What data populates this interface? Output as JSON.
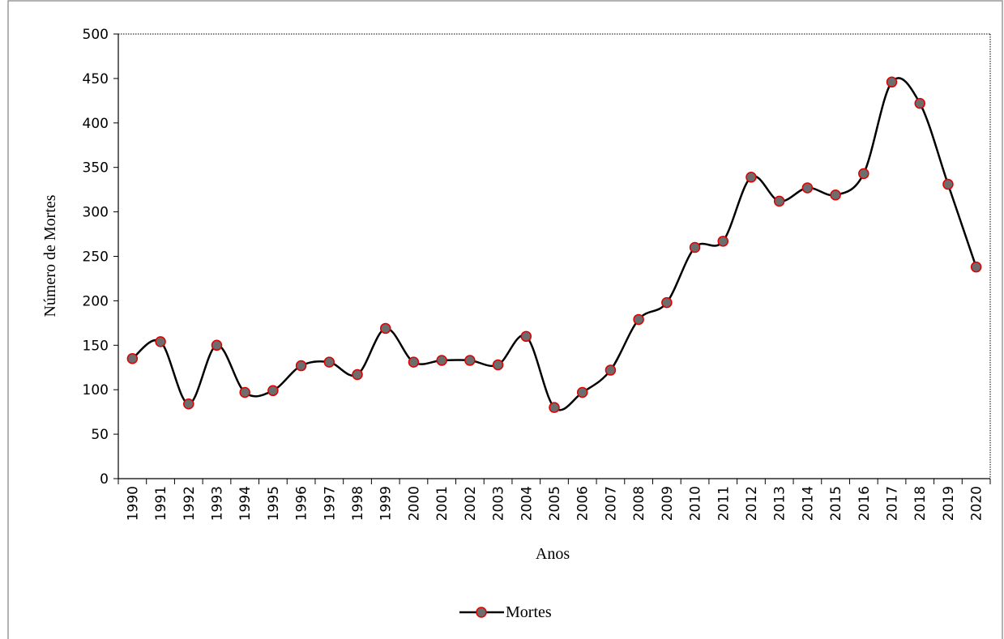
{
  "chart_data": {
    "type": "line",
    "xlabel": "Anos",
    "ylabel": "Número de Mortes",
    "categories": [
      "1990",
      "1991",
      "1992",
      "1993",
      "1994",
      "1995",
      "1996",
      "1997",
      "1998",
      "1999",
      "2000",
      "2001",
      "2002",
      "2003",
      "2004",
      "2005",
      "2006",
      "2007",
      "2008",
      "2009",
      "2010",
      "2011",
      "2012",
      "2013",
      "2014",
      "2015",
      "2016",
      "2017",
      "2018",
      "2019",
      "2020"
    ],
    "series": [
      {
        "name": "Mortes",
        "color": "#000000",
        "marker_fill": "#6d6d6d",
        "marker_edge": "#e00000",
        "values": [
          135,
          154,
          84,
          150,
          97,
          99,
          127,
          131,
          117,
          169,
          131,
          133,
          133,
          128,
          160,
          80,
          97,
          122,
          179,
          198,
          260,
          267,
          339,
          312,
          327,
          319,
          343,
          446,
          422,
          331,
          238
        ]
      }
    ],
    "ylim": [
      0,
      500
    ],
    "yticks": [
      0,
      50,
      100,
      150,
      200,
      250,
      300,
      350,
      400,
      450,
      500
    ],
    "smooth": true,
    "legend": "bottom"
  }
}
